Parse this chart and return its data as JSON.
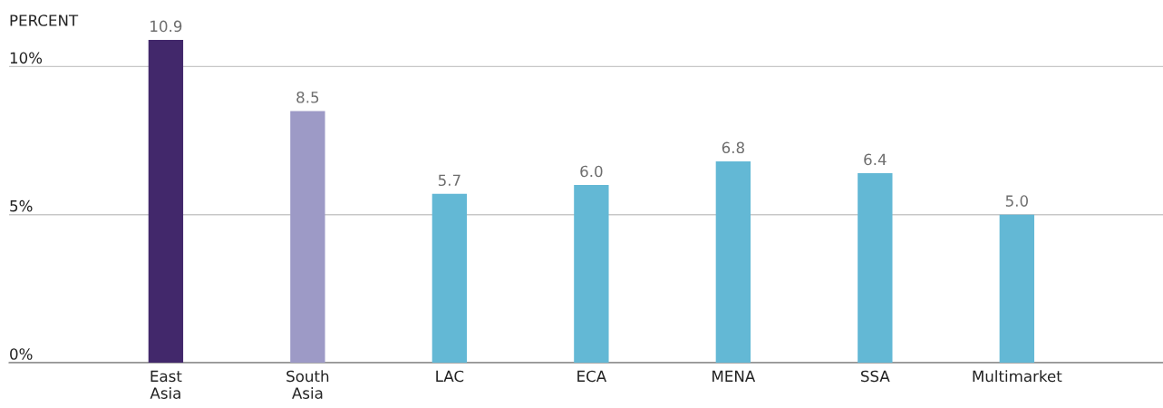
{
  "chart_data": {
    "type": "bar",
    "ylabel": "PERCENT",
    "categories": [
      "East Asia",
      "South Asia",
      "LAC",
      "ECA",
      "MENA",
      "SSA",
      "Multimarket"
    ],
    "values": [
      10.9,
      8.5,
      5.7,
      6.0,
      6.8,
      6.4,
      5.0
    ],
    "colors": [
      "#42286b",
      "#9d9ac6",
      "#63b8d5",
      "#63b8d5",
      "#63b8d5",
      "#63b8d5",
      "#63b8d5"
    ],
    "value_labels": [
      "10.9",
      "8.5",
      "5.7",
      "6.0",
      "6.8",
      "6.4",
      "5.0"
    ],
    "ylim": [
      0,
      10.9
    ],
    "yticks": [
      {
        "value": 0,
        "label": "0%"
      },
      {
        "value": 5,
        "label": "5%"
      },
      {
        "value": 10,
        "label": "10%"
      }
    ],
    "grid": "y"
  }
}
